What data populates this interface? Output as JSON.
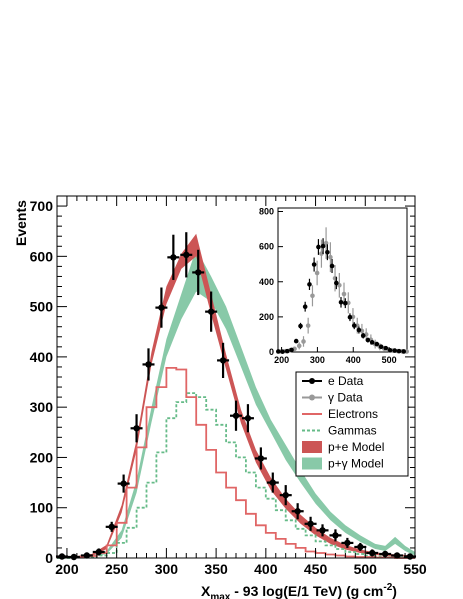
{
  "chart_data": [
    {
      "type": "line",
      "xlabel_parts": [
        "X",
        "max",
        " - 93 log(E/1 TeV) (g cm",
        "-2",
        ")"
      ],
      "ylabel": "Events",
      "xlim": [
        190,
        550
      ],
      "ylim": [
        0,
        720
      ],
      "xticks": [
        200,
        250,
        300,
        350,
        400,
        450,
        500,
        550
      ],
      "yticks": [
        0,
        100,
        200,
        300,
        400,
        500,
        600,
        700
      ],
      "legend_position": "center-right",
      "colors": {
        "e_data": "#000000",
        "gamma_data": "#999999",
        "electrons": "#e06666",
        "gammas": "#66bb88",
        "pe_model": "#cc5555",
        "pg_model": "#88c9a8"
      },
      "legend": [
        {
          "key": "e_data",
          "label": "e Data"
        },
        {
          "key": "gamma_data",
          "label": "γ Data"
        },
        {
          "key": "electrons",
          "label": "Electrons"
        },
        {
          "key": "gammas",
          "label": "Gammas"
        },
        {
          "key": "pe_model",
          "label": "p+e Model"
        },
        {
          "key": "pg_model",
          "label": "p+γ Model"
        }
      ],
      "e_data": [
        {
          "x": 195,
          "y": 3,
          "err": 5
        },
        {
          "x": 207,
          "y": 2,
          "err": 5
        },
        {
          "x": 220,
          "y": 5,
          "err": 6
        },
        {
          "x": 232,
          "y": 12,
          "err": 7
        },
        {
          "x": 245,
          "y": 62,
          "err": 10
        },
        {
          "x": 257,
          "y": 148,
          "err": 18
        },
        {
          "x": 270,
          "y": 258,
          "err": 28
        },
        {
          "x": 282,
          "y": 385,
          "err": 32
        },
        {
          "x": 295,
          "y": 498,
          "err": 40
        },
        {
          "x": 307,
          "y": 598,
          "err": 45
        },
        {
          "x": 320,
          "y": 603,
          "err": 45
        },
        {
          "x": 332,
          "y": 568,
          "err": 45
        },
        {
          "x": 345,
          "y": 490,
          "err": 40
        },
        {
          "x": 357,
          "y": 393,
          "err": 35
        },
        {
          "x": 370,
          "y": 283,
          "err": 30
        },
        {
          "x": 382,
          "y": 278,
          "err": 28
        },
        {
          "x": 395,
          "y": 198,
          "err": 22
        },
        {
          "x": 407,
          "y": 150,
          "err": 20
        },
        {
          "x": 420,
          "y": 125,
          "err": 20
        },
        {
          "x": 432,
          "y": 93,
          "err": 16
        },
        {
          "x": 445,
          "y": 68,
          "err": 14
        },
        {
          "x": 457,
          "y": 55,
          "err": 12
        },
        {
          "x": 470,
          "y": 45,
          "err": 12
        },
        {
          "x": 482,
          "y": 30,
          "err": 10
        },
        {
          "x": 495,
          "y": 22,
          "err": 8
        },
        {
          "x": 507,
          "y": 10,
          "err": 7
        },
        {
          "x": 520,
          "y": 8,
          "err": 6
        },
        {
          "x": 532,
          "y": 5,
          "err": 5
        },
        {
          "x": 545,
          "y": 3,
          "err": 5
        }
      ],
      "pe_model": [
        {
          "x": 195,
          "y": [
            0,
            2
          ]
        },
        {
          "x": 210,
          "y": [
            1,
            4
          ]
        },
        {
          "x": 225,
          "y": [
            4,
            8
          ]
        },
        {
          "x": 240,
          "y": [
            18,
            26
          ]
        },
        {
          "x": 255,
          "y": [
            90,
            105
          ]
        },
        {
          "x": 270,
          "y": [
            215,
            235
          ]
        },
        {
          "x": 285,
          "y": [
            385,
            410
          ]
        },
        {
          "x": 300,
          "y": [
            505,
            540
          ]
        },
        {
          "x": 315,
          "y": [
            575,
            605
          ]
        },
        {
          "x": 330,
          "y": [
            600,
            645
          ]
        },
        {
          "x": 345,
          "y": [
            485,
            525
          ]
        },
        {
          "x": 360,
          "y": [
            375,
            405
          ]
        },
        {
          "x": 375,
          "y": [
            268,
            295
          ]
        },
        {
          "x": 390,
          "y": [
            190,
            215
          ]
        },
        {
          "x": 405,
          "y": [
            135,
            160
          ]
        },
        {
          "x": 420,
          "y": [
            98,
            118
          ]
        },
        {
          "x": 435,
          "y": [
            68,
            86
          ]
        },
        {
          "x": 450,
          "y": [
            45,
            60
          ]
        },
        {
          "x": 465,
          "y": [
            28,
            40
          ]
        },
        {
          "x": 480,
          "y": [
            17,
            26
          ]
        },
        {
          "x": 495,
          "y": [
            10,
            17
          ]
        },
        {
          "x": 510,
          "y": [
            6,
            11
          ]
        },
        {
          "x": 525,
          "y": [
            4,
            8
          ]
        },
        {
          "x": 550,
          "y": [
            2,
            5
          ]
        }
      ],
      "pg_model": [
        {
          "x": 195,
          "y": [
            0,
            2
          ]
        },
        {
          "x": 210,
          "y": [
            1,
            3
          ]
        },
        {
          "x": 225,
          "y": [
            2,
            5
          ]
        },
        {
          "x": 240,
          "y": [
            8,
            14
          ]
        },
        {
          "x": 255,
          "y": [
            40,
            55
          ]
        },
        {
          "x": 270,
          "y": [
            130,
            155
          ]
        },
        {
          "x": 285,
          "y": [
            270,
            300
          ]
        },
        {
          "x": 300,
          "y": [
            400,
            435
          ]
        },
        {
          "x": 315,
          "y": [
            475,
            525
          ]
        },
        {
          "x": 330,
          "y": [
            530,
            615
          ]
        },
        {
          "x": 345,
          "y": [
            510,
            560
          ]
        },
        {
          "x": 360,
          "y": [
            455,
            500
          ]
        },
        {
          "x": 375,
          "y": [
            380,
            420
          ]
        },
        {
          "x": 390,
          "y": [
            305,
            340
          ]
        },
        {
          "x": 405,
          "y": [
            250,
            275
          ]
        },
        {
          "x": 420,
          "y": [
            195,
            225
          ]
        },
        {
          "x": 435,
          "y": [
            150,
            175
          ]
        },
        {
          "x": 450,
          "y": [
            108,
            128
          ]
        },
        {
          "x": 465,
          "y": [
            75,
            92
          ]
        },
        {
          "x": 480,
          "y": [
            50,
            65
          ]
        },
        {
          "x": 495,
          "y": [
            32,
            45
          ]
        },
        {
          "x": 510,
          "y": [
            18,
            28
          ]
        },
        {
          "x": 520,
          "y": [
            14,
            24
          ]
        },
        {
          "x": 530,
          "y": [
            28,
            42
          ]
        },
        {
          "x": 540,
          "y": [
            14,
            24
          ]
        },
        {
          "x": 550,
          "y": [
            5,
            12
          ]
        }
      ],
      "electrons_hist": {
        "edges": [
          190,
          200,
          210,
          220,
          230,
          240,
          250,
          260,
          270,
          280,
          290,
          300,
          310,
          320,
          330,
          340,
          350,
          360,
          370,
          380,
          390,
          400,
          410,
          420,
          430,
          440,
          450,
          460,
          470,
          480,
          490,
          500,
          510,
          520,
          530,
          540,
          550
        ],
        "values": [
          1,
          1,
          2,
          4,
          10,
          25,
          70,
          140,
          220,
          300,
          340,
          378,
          375,
          320,
          265,
          215,
          170,
          140,
          115,
          88,
          65,
          50,
          38,
          28,
          20,
          13,
          10,
          7,
          5,
          3,
          2,
          2,
          1,
          1,
          0,
          0
        ]
      },
      "gammas_hist": {
        "edges": [
          190,
          200,
          210,
          220,
          230,
          240,
          250,
          260,
          270,
          280,
          290,
          300,
          310,
          320,
          330,
          340,
          350,
          360,
          370,
          380,
          390,
          400,
          410,
          420,
          430,
          440,
          450,
          460,
          470,
          480,
          490,
          500,
          510,
          520,
          530,
          540,
          550
        ],
        "values": [
          0,
          0,
          1,
          2,
          5,
          10,
          30,
          60,
          100,
          150,
          210,
          278,
          310,
          328,
          320,
          295,
          265,
          230,
          200,
          170,
          140,
          118,
          95,
          75,
          58,
          45,
          33,
          25,
          18,
          12,
          8,
          5,
          3,
          2,
          1,
          1
        ]
      }
    },
    {
      "type": "scatter",
      "title": "",
      "xlim": [
        190,
        550
      ],
      "ylim": [
        0,
        820
      ],
      "xticks": [
        200,
        300,
        400,
        500
      ],
      "yticks": [
        0,
        200,
        400,
        600,
        800
      ],
      "gamma_data": [
        {
          "x": 195,
          "y": 3,
          "err": 5
        },
        {
          "x": 207,
          "y": 5,
          "err": 5
        },
        {
          "x": 220,
          "y": 10,
          "err": 6
        },
        {
          "x": 232,
          "y": 18,
          "err": 8
        },
        {
          "x": 245,
          "y": 35,
          "err": 20
        },
        {
          "x": 257,
          "y": 60,
          "err": 30
        },
        {
          "x": 270,
          "y": 150,
          "err": 45
        },
        {
          "x": 282,
          "y": 320,
          "err": 60
        },
        {
          "x": 295,
          "y": 450,
          "err": 70
        },
        {
          "x": 307,
          "y": 560,
          "err": 80
        },
        {
          "x": 320,
          "y": 620,
          "err": 90
        },
        {
          "x": 332,
          "y": 540,
          "err": 85
        },
        {
          "x": 345,
          "y": 420,
          "err": 75
        },
        {
          "x": 357,
          "y": 380,
          "err": 70
        },
        {
          "x": 370,
          "y": 330,
          "err": 65
        },
        {
          "x": 382,
          "y": 280,
          "err": 60
        },
        {
          "x": 395,
          "y": 200,
          "err": 50
        },
        {
          "x": 407,
          "y": 150,
          "err": 45
        },
        {
          "x": 420,
          "y": 120,
          "err": 40
        },
        {
          "x": 432,
          "y": 100,
          "err": 35
        },
        {
          "x": 445,
          "y": 70,
          "err": 30
        },
        {
          "x": 457,
          "y": 45,
          "err": 25
        },
        {
          "x": 470,
          "y": 30,
          "err": 20
        },
        {
          "x": 482,
          "y": 20,
          "err": 15
        },
        {
          "x": 495,
          "y": 12,
          "err": 10
        },
        {
          "x": 507,
          "y": 8,
          "err": 8
        },
        {
          "x": 520,
          "y": 5,
          "err": 6
        },
        {
          "x": 532,
          "y": 4,
          "err": 5
        },
        {
          "x": 545,
          "y": 3,
          "err": 5
        }
      ],
      "e_data": [
        {
          "x": 195,
          "y": 3,
          "err": 5
        },
        {
          "x": 207,
          "y": 2,
          "err": 5
        },
        {
          "x": 220,
          "y": 5,
          "err": 6
        },
        {
          "x": 232,
          "y": 12,
          "err": 7
        },
        {
          "x": 245,
          "y": 62,
          "err": 10
        },
        {
          "x": 257,
          "y": 148,
          "err": 18
        },
        {
          "x": 270,
          "y": 258,
          "err": 28
        },
        {
          "x": 282,
          "y": 385,
          "err": 32
        },
        {
          "x": 295,
          "y": 498,
          "err": 40
        },
        {
          "x": 307,
          "y": 598,
          "err": 45
        },
        {
          "x": 320,
          "y": 603,
          "err": 45
        },
        {
          "x": 332,
          "y": 568,
          "err": 45
        },
        {
          "x": 345,
          "y": 490,
          "err": 40
        },
        {
          "x": 357,
          "y": 393,
          "err": 35
        },
        {
          "x": 370,
          "y": 283,
          "err": 30
        },
        {
          "x": 382,
          "y": 278,
          "err": 28
        },
        {
          "x": 395,
          "y": 198,
          "err": 22
        },
        {
          "x": 407,
          "y": 150,
          "err": 20
        },
        {
          "x": 420,
          "y": 125,
          "err": 20
        },
        {
          "x": 432,
          "y": 93,
          "err": 16
        },
        {
          "x": 445,
          "y": 68,
          "err": 14
        },
        {
          "x": 457,
          "y": 55,
          "err": 12
        },
        {
          "x": 470,
          "y": 45,
          "err": 12
        },
        {
          "x": 482,
          "y": 30,
          "err": 10
        },
        {
          "x": 495,
          "y": 22,
          "err": 8
        },
        {
          "x": 507,
          "y": 10,
          "err": 7
        },
        {
          "x": 520,
          "y": 8,
          "err": 6
        },
        {
          "x": 532,
          "y": 5,
          "err": 5
        },
        {
          "x": 545,
          "y": 3,
          "err": 5
        }
      ]
    }
  ]
}
